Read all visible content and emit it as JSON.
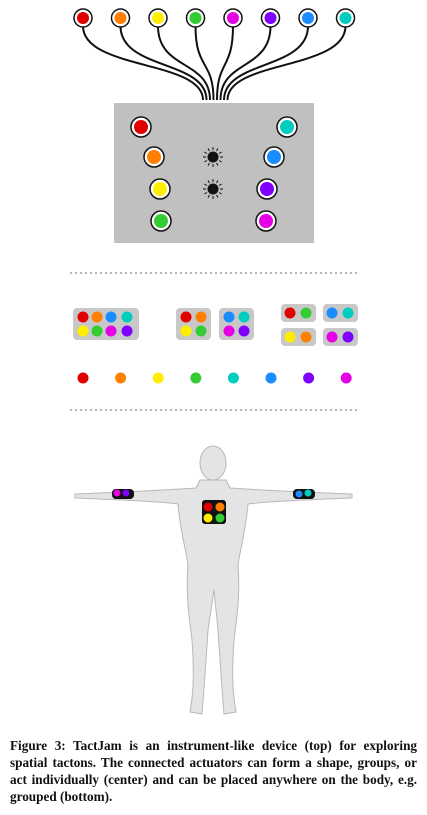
{
  "figure": {
    "caption": "Figure 3: TactJam is an instrument-like device (top) for exploring spatial tactons. The connected actuators can form a shape, groups, or act individually (center) and can be placed anywhere on the body, e.g. grouped (bottom)."
  }
}
